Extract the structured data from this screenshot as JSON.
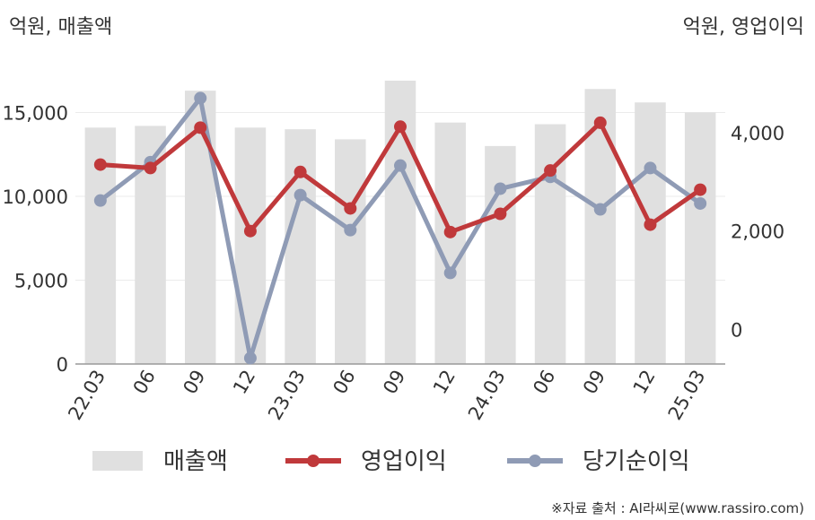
{
  "chart_data": {
    "type": "bar",
    "left_unit_label": "억원, 매출액",
    "right_unit_label": "억원, 영업이익",
    "categories": [
      "22.03",
      "06",
      "09",
      "12",
      "23.03",
      "06",
      "09",
      "12",
      "24.03",
      "06",
      "09",
      "12",
      "25.03"
    ],
    "left_axis": {
      "ticks": [
        0,
        5000,
        10000,
        15000
      ],
      "tick_labels": [
        "0",
        "5,000",
        "10,000",
        "15,000"
      ],
      "range": [
        0,
        18500
      ]
    },
    "right_axis": {
      "ticks": [
        0,
        2000,
        4000
      ],
      "tick_labels": [
        "0",
        "2,000",
        "4,000"
      ],
      "range": [
        -700,
        5600
      ]
    },
    "series": [
      {
        "name": "매출액",
        "type": "bar",
        "axis": "left",
        "color": "#e0e0e0",
        "values": [
          14100,
          14200,
          16300,
          14100,
          14000,
          13400,
          16900,
          14400,
          13000,
          14300,
          16400,
          15600,
          15000
        ]
      },
      {
        "name": "영업이익",
        "type": "line",
        "axis": "right",
        "color": "#c0393b",
        "values": [
          3350,
          3280,
          4100,
          2000,
          3200,
          2460,
          4120,
          1980,
          2350,
          3230,
          4200,
          2130,
          2840
        ]
      },
      {
        "name": "당기순이익",
        "type": "line",
        "axis": "right",
        "color": "#8f9bb5",
        "values": [
          2620,
          3400,
          4700,
          -580,
          2730,
          2020,
          3330,
          1150,
          2860,
          3100,
          2440,
          3280,
          2560
        ]
      }
    ],
    "grid": "horizontal",
    "legend_position": "bottom"
  },
  "source_text": "※자료 출처 : AI라씨로(www.rassiro.com)"
}
